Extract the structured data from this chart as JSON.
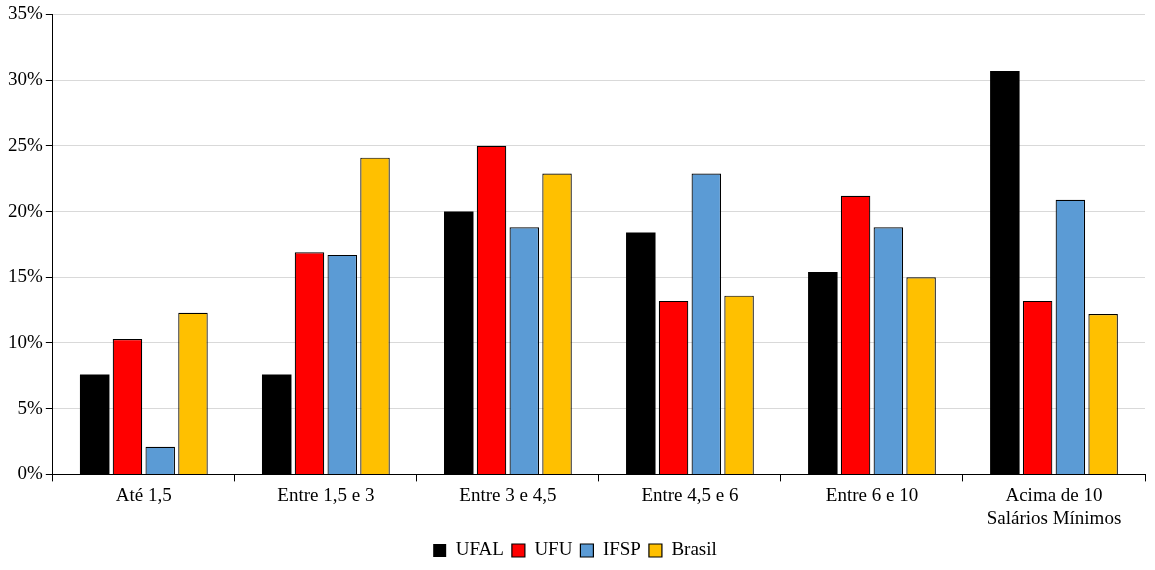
{
  "chart_data": {
    "type": "bar",
    "categories": [
      "Até 1,5",
      "Entre 1,5 e 3",
      "Entre 3 e 4,5",
      "Entre 4,5 e 6",
      "Entre 6 e 10",
      "Acima de 10\nSalários Mínimos"
    ],
    "series": [
      {
        "name": "UFAL",
        "color": "#000000",
        "values": [
          7.6,
          7.6,
          20.0,
          18.4,
          15.4,
          30.7
        ]
      },
      {
        "name": "UFU",
        "color": "#ff0000",
        "values": [
          10.3,
          16.9,
          25.0,
          13.2,
          21.2,
          13.2
        ]
      },
      {
        "name": "IFSP",
        "color": "#5b9bd5",
        "values": [
          2.1,
          16.7,
          18.8,
          22.9,
          18.8,
          20.9
        ]
      },
      {
        "name": "Brasil",
        "color": "#ffc000",
        "values": [
          12.3,
          24.1,
          22.9,
          13.6,
          15.0,
          12.2
        ]
      }
    ],
    "ylim": [
      0,
      35
    ],
    "yticks": [
      {
        "value": 0,
        "label": "0%"
      },
      {
        "value": 5,
        "label": "5%"
      },
      {
        "value": 10,
        "label": "10%"
      },
      {
        "value": 15,
        "label": "15%"
      },
      {
        "value": 20,
        "label": "20%"
      },
      {
        "value": 25,
        "label": "25%"
      },
      {
        "value": 30,
        "label": "30%"
      },
      {
        "value": 35,
        "label": "35%"
      }
    ],
    "grid": "y",
    "legend": "bottom"
  }
}
